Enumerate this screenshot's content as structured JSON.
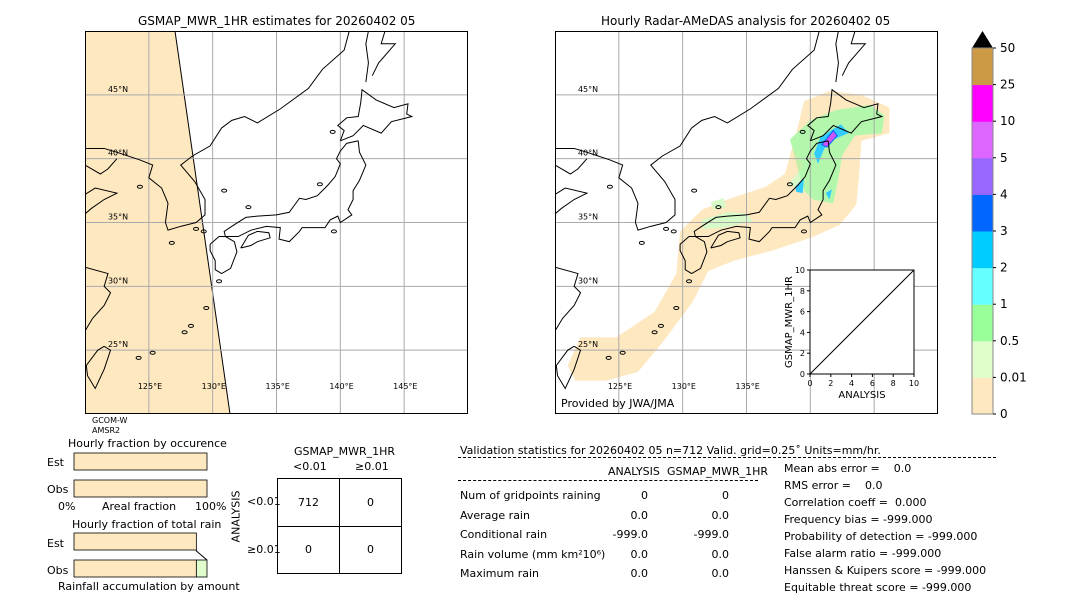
{
  "left_map": {
    "title": "GSMAP_MWR_1HR estimates for 20260402 05",
    "sensor_line1": "GCOM-W",
    "sensor_line2": "AMSR2",
    "lat_labels": [
      "45°N",
      "40°N",
      "35°N",
      "30°N",
      "25°N"
    ],
    "lon_labels": [
      "125°E",
      "130°E",
      "135°E",
      "140°E",
      "145°E"
    ]
  },
  "right_map": {
    "title": "Hourly Radar-AMeDAS analysis for 20260402 05",
    "credit": "Provided by JWA/JMA",
    "lat_labels": [
      "45°N",
      "40°N",
      "35°N",
      "30°N",
      "25°N"
    ],
    "lon_labels": [
      "125°E",
      "130°E",
      "135°E"
    ]
  },
  "extent": {
    "lon": [
      120,
      150
    ],
    "lat": [
      20,
      50
    ],
    "grid_lon": [
      125,
      130,
      135,
      140,
      145
    ],
    "grid_lat": [
      25,
      30,
      35,
      40,
      45
    ]
  },
  "inset_scatter": {
    "xlabel": "ANALYSIS",
    "ylabel": "GSMAP_MWR_1HR",
    "ticks": [
      "0",
      "2",
      "4",
      "6",
      "8",
      "10"
    ],
    "xlim": [
      0,
      10
    ],
    "ylim": [
      0,
      10
    ]
  },
  "colorbar": {
    "labels": [
      "0",
      "0.01",
      "0.5",
      "1",
      "2",
      "3",
      "4",
      "5",
      "10",
      "25",
      "50"
    ],
    "colors": [
      "#fee8c0",
      "#e0fdcc",
      "#99ff99",
      "#66ffff",
      "#00ccff",
      "#0066ff",
      "#9966ff",
      "#dd66ff",
      "#ff00ff",
      "#cc9944"
    ],
    "extend_color": "#000000"
  },
  "occurrence": {
    "title": "Hourly fraction by occurence",
    "rows": [
      "Est",
      "Obs"
    ],
    "axis_left": "0%",
    "axis_mid": "Areal fraction",
    "axis_right": "100%",
    "est_fractions": [
      1.0
    ],
    "obs_fractions": [
      1.0
    ]
  },
  "total_rain": {
    "title": "Hourly fraction of total rain",
    "rows": [
      "Est",
      "Obs"
    ],
    "footer": "Rainfall accumulation by amount",
    "est_fractions": [
      0.92
    ],
    "obs_fractions": [
      0.92,
      0.08
    ]
  },
  "contingency": {
    "title": "GSMAP_MWR_1HR",
    "col_headers": [
      "<0.01",
      "≥0.01"
    ],
    "row_label": "ANALYSIS",
    "row_headers": [
      "<0.01",
      "≥0.01"
    ],
    "cells": [
      [
        "712",
        "0"
      ],
      [
        "0",
        "0"
      ]
    ]
  },
  "validation": {
    "header": "Validation statistics for 20260402 05  n=712 Valid. grid=0.25˚ Units=mm/hr.",
    "col_headers": [
      "ANALYSIS",
      "GSMAP_MWR_1HR"
    ],
    "rows": [
      {
        "label": "Num of gridpoints raining",
        "analysis": "0",
        "gsmap": "0"
      },
      {
        "label": "Average rain",
        "analysis": "0.0",
        "gsmap": "0.0"
      },
      {
        "label": "Conditional rain",
        "analysis": "-999.0",
        "gsmap": "-999.0"
      },
      {
        "label": "Rain volume (mm km²10⁶)",
        "analysis": "0.0",
        "gsmap": "0.0"
      },
      {
        "label": "Maximum rain",
        "analysis": "0.0",
        "gsmap": "0.0"
      }
    ],
    "scores": [
      "Mean abs error =    0.0",
      "RMS error =    0.0",
      "Correlation coeff =  0.000",
      "Frequency bias = -999.000",
      "Probability of detection = -999.000",
      "False alarm ratio = -999.000",
      "Hanssen & Kuipers score = -999.000",
      "Equitable threat score = -999.000"
    ]
  }
}
